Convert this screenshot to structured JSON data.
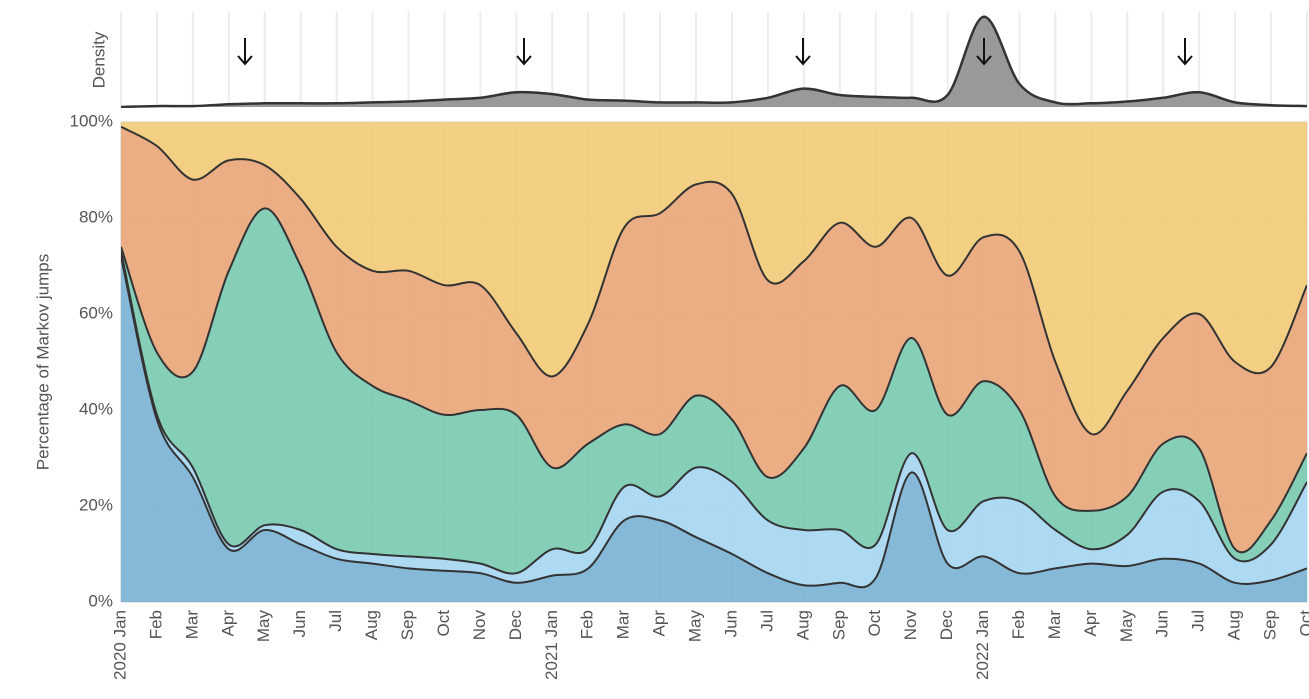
{
  "chart_data": [
    {
      "type": "area",
      "y_label": "Density",
      "color": "#999999",
      "ylim": [
        0,
        1
      ],
      "values": [
        0.0,
        0.01,
        0.01,
        0.03,
        0.04,
        0.04,
        0.04,
        0.05,
        0.06,
        0.08,
        0.1,
        0.16,
        0.14,
        0.08,
        0.07,
        0.05,
        0.05,
        0.05,
        0.1,
        0.2,
        0.13,
        0.11,
        0.1,
        0.13,
        0.98,
        0.25,
        0.05,
        0.04,
        0.06,
        0.1,
        0.16,
        0.05,
        0.02,
        0.01
      ]
    },
    {
      "type": "stacked_area",
      "y_label": "Percentage of Markov jumps",
      "categories": [
        "2020 Jan",
        "Feb",
        "Mar",
        "Apr",
        "May",
        "Jun",
        "Jul",
        "Aug",
        "Sep",
        "Oct",
        "Nov",
        "Dec",
        "2021 Jan",
        "Feb",
        "Mar",
        "Apr",
        "May",
        "Jun",
        "Jul",
        "Aug",
        "Sep",
        "Oct",
        "Nov",
        "Dec",
        "2022 Jan",
        "Feb",
        "Mar",
        "Apr",
        "May",
        "Jun",
        "Jul",
        "Aug",
        "Sep",
        "Oct"
      ],
      "ylim": [
        0,
        100
      ],
      "yticks": [
        {
          "value": 0,
          "label": "0%"
        },
        {
          "value": 20,
          "label": "20%"
        },
        {
          "value": 40,
          "label": "40%"
        },
        {
          "value": 60,
          "label": "60%"
        },
        {
          "value": 80,
          "label": "80%"
        },
        {
          "value": 100,
          "label": "100%"
        }
      ],
      "grid": true,
      "series": [
        {
          "color": "#7fb4d6",
          "values": [
            72,
            38,
            26,
            11,
            15,
            12,
            9,
            8,
            7,
            6.5,
            6,
            4,
            5.5,
            7,
            17,
            17,
            13.5,
            10,
            6,
            3.5,
            4,
            5,
            27,
            8,
            9.5,
            6,
            7,
            8,
            7.5,
            9,
            8,
            4,
            4.5,
            7
          ]
        },
        {
          "color": "#a9d7f1",
          "values": [
            1,
            1,
            2,
            1,
            1,
            3,
            2,
            2,
            2.5,
            2.5,
            2,
            2,
            5.5,
            4,
            7,
            5,
            14.5,
            15,
            11,
            11.5,
            11,
            7,
            4,
            7,
            11.5,
            15,
            8,
            3,
            6.5,
            14,
            13,
            5,
            7.5,
            18
          ]
        },
        {
          "color": "#7ecbb4",
          "values": [
            1,
            13,
            20,
            57,
            66,
            55,
            41,
            35,
            32.5,
            30,
            32,
            33,
            17,
            22,
            13,
            13,
            15,
            13,
            9,
            17,
            30,
            28,
            24,
            24,
            25,
            19,
            7,
            8,
            8,
            10,
            11,
            2,
            5,
            6
          ]
        },
        {
          "color": "#eaa97d",
          "values": [
            25,
            43,
            40,
            23,
            9,
            14,
            22,
            24,
            27,
            27,
            26,
            17,
            19,
            25,
            41,
            46,
            44,
            47,
            41,
            39,
            34,
            34,
            25,
            29,
            30,
            33,
            28,
            16,
            22,
            22,
            28,
            39,
            32,
            35
          ]
        },
        {
          "color": "#f1cc7b",
          "values": [
            1,
            5,
            12,
            8,
            9,
            16,
            26,
            31,
            31,
            34,
            34,
            44,
            53,
            42,
            22,
            19,
            13,
            15,
            33,
            29,
            21,
            26,
            20,
            32,
            24,
            27,
            50,
            65,
            56,
            45,
            40,
            50,
            51,
            34
          ]
        }
      ]
    }
  ]
}
